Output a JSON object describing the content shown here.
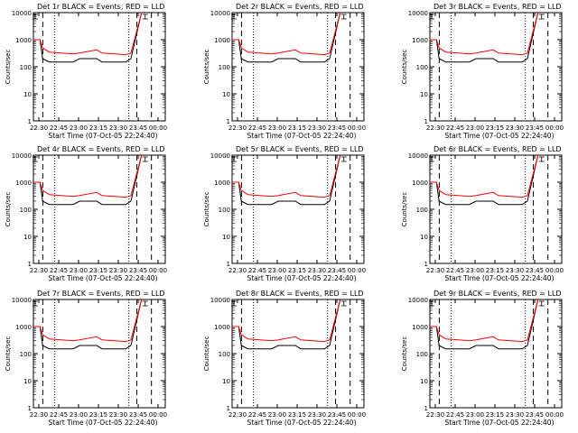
{
  "colors": {
    "background": "#ffffff",
    "axes": "#000000",
    "events": "#000000",
    "lld": "#ff0000"
  },
  "chart_data": [
    {
      "type": "line",
      "title": "Det 1r BLACK = Events, RED = LLD",
      "xlabel": "Start Time (07-Oct-05 22:24:40)",
      "ylabel": "Counts/sec",
      "yscale": "log",
      "ylim": [
        1,
        10000
      ],
      "xlim": [
        0,
        100
      ],
      "x_tick_labels": [
        "22:30",
        "22:45",
        "23:00",
        "23:15",
        "23:30",
        "23:45",
        "00:00"
      ],
      "y_tick_labels": [
        "1",
        "10",
        "100",
        "1000",
        "10000"
      ],
      "vlines_dashed": [
        "22:33",
        "23:44",
        "23:55"
      ],
      "vlines_dotted": [
        "22:42",
        "23:38"
      ],
      "series": [
        {
          "name": "Events",
          "x": [
            0,
            5,
            7,
            12,
            30,
            35,
            48,
            52,
            70,
            74,
            82
          ],
          "y": [
            1000,
            1000,
            200,
            150,
            150,
            200,
            200,
            150,
            150,
            200,
            10000
          ]
        },
        {
          "name": "LLD",
          "x": [
            0,
            5,
            7,
            12,
            30,
            35,
            48,
            52,
            70,
            74,
            82
          ],
          "y": [
            1000,
            1000,
            500,
            350,
            300,
            320,
            420,
            320,
            280,
            320,
            10000
          ]
        }
      ]
    },
    {
      "type": "line",
      "title": "Det 2r BLACK = Events, RED = LLD",
      "xlabel": "Start Time (07-Oct-05 22:24:40)",
      "ylabel": "Counts/sec",
      "yscale": "log",
      "ylim": [
        1,
        10000
      ],
      "xlim": [
        0,
        100
      ],
      "x_tick_labels": [
        "22:30",
        "22:45",
        "23:00",
        "23:15",
        "23:30",
        "23:45",
        "00:00"
      ],
      "y_tick_labels": [
        "1",
        "10",
        "100",
        "1000",
        "10000"
      ],
      "vlines_dashed": [
        "22:33",
        "23:44",
        "23:55"
      ],
      "vlines_dotted": [
        "22:42",
        "23:38"
      ],
      "series": [
        {
          "name": "Events",
          "x": [
            0,
            5,
            7,
            12,
            30,
            35,
            48,
            52,
            70,
            74,
            82
          ],
          "y": [
            1000,
            1000,
            200,
            150,
            150,
            200,
            200,
            150,
            150,
            200,
            10000
          ]
        },
        {
          "name": "LLD",
          "x": [
            0,
            5,
            7,
            12,
            30,
            35,
            48,
            52,
            70,
            74,
            82
          ],
          "y": [
            1000,
            1000,
            500,
            350,
            300,
            320,
            420,
            320,
            280,
            320,
            10000
          ]
        }
      ]
    },
    {
      "type": "line",
      "title": "Det 3r BLACK = Events, RED = LLD",
      "xlabel": "Start Time (07-Oct-05 22:24:40)",
      "ylabel": "Counts/sec",
      "yscale": "log",
      "ylim": [
        1,
        10000
      ],
      "xlim": [
        0,
        100
      ],
      "x_tick_labels": [
        "22:30",
        "22:45",
        "23:00",
        "23:15",
        "23:30",
        "23:45",
        "00:00"
      ],
      "y_tick_labels": [
        "1",
        "10",
        "100",
        "1000",
        "10000"
      ],
      "vlines_dashed": [
        "22:33",
        "23:44",
        "23:55"
      ],
      "vlines_dotted": [
        "22:42",
        "23:38"
      ],
      "series": [
        {
          "name": "Events",
          "x": [
            0,
            5,
            7,
            12,
            30,
            35,
            48,
            52,
            70,
            74,
            82
          ],
          "y": [
            1000,
            1000,
            200,
            150,
            150,
            200,
            200,
            150,
            150,
            200,
            10000
          ]
        },
        {
          "name": "LLD",
          "x": [
            0,
            5,
            7,
            12,
            30,
            35,
            48,
            52,
            70,
            74,
            82
          ],
          "y": [
            1000,
            1000,
            500,
            350,
            300,
            320,
            420,
            320,
            280,
            320,
            10000
          ]
        }
      ]
    },
    {
      "type": "line",
      "title": "Det 4r BLACK = Events, RED = LLD",
      "xlabel": "Start Time (07-Oct-05 22:24:40)",
      "ylabel": "Counts/sec",
      "yscale": "log",
      "ylim": [
        1,
        10000
      ],
      "xlim": [
        0,
        100
      ],
      "x_tick_labels": [
        "22:30",
        "22:45",
        "23:00",
        "23:15",
        "23:30",
        "23:45",
        "00:00"
      ],
      "y_tick_labels": [
        "1",
        "10",
        "100",
        "1000",
        "10000"
      ],
      "vlines_dashed": [
        "22:33",
        "23:44",
        "23:55"
      ],
      "vlines_dotted": [
        "22:42",
        "23:38"
      ],
      "series": [
        {
          "name": "Events",
          "x": [
            0,
            5,
            7,
            12,
            30,
            35,
            48,
            52,
            70,
            74,
            82
          ],
          "y": [
            1000,
            1000,
            200,
            150,
            150,
            200,
            200,
            150,
            150,
            200,
            10000
          ]
        },
        {
          "name": "LLD",
          "x": [
            0,
            5,
            7,
            12,
            30,
            35,
            48,
            52,
            70,
            74,
            82
          ],
          "y": [
            1000,
            1000,
            500,
            350,
            300,
            320,
            420,
            320,
            280,
            320,
            10000
          ]
        }
      ]
    },
    {
      "type": "line",
      "title": "Det 5r BLACK = Events, RED = LLD",
      "xlabel": "Start Time (07-Oct-05 22:24:40)",
      "ylabel": "Counts/sec",
      "yscale": "log",
      "ylim": [
        1,
        10000
      ],
      "xlim": [
        0,
        100
      ],
      "x_tick_labels": [
        "22:30",
        "22:45",
        "23:00",
        "23:15",
        "23:30",
        "23:45",
        "00:00"
      ],
      "y_tick_labels": [
        "1",
        "10",
        "100",
        "1000",
        "10000"
      ],
      "vlines_dashed": [
        "22:33",
        "23:44",
        "23:55"
      ],
      "vlines_dotted": [
        "22:42",
        "23:38"
      ],
      "series": [
        {
          "name": "Events",
          "x": [
            0,
            5,
            7,
            12,
            30,
            35,
            48,
            52,
            70,
            74,
            82
          ],
          "y": [
            1000,
            1000,
            200,
            150,
            150,
            200,
            200,
            150,
            150,
            200,
            10000
          ]
        },
        {
          "name": "LLD",
          "x": [
            0,
            5,
            7,
            12,
            30,
            35,
            48,
            52,
            70,
            74,
            82
          ],
          "y": [
            1000,
            1000,
            500,
            350,
            300,
            320,
            420,
            320,
            280,
            320,
            10000
          ]
        }
      ]
    },
    {
      "type": "line",
      "title": "Det 6r BLACK = Events, RED = LLD",
      "xlabel": "Start Time (07-Oct-05 22:24:40)",
      "ylabel": "Counts/sec",
      "yscale": "log",
      "ylim": [
        1,
        10000
      ],
      "xlim": [
        0,
        100
      ],
      "x_tick_labels": [
        "22:30",
        "22:45",
        "23:00",
        "23:15",
        "23:30",
        "23:45",
        "00:00"
      ],
      "y_tick_labels": [
        "1",
        "10",
        "100",
        "1000",
        "10000"
      ],
      "vlines_dashed": [
        "22:33",
        "23:44",
        "23:55"
      ],
      "vlines_dotted": [
        "22:42",
        "23:38"
      ],
      "series": [
        {
          "name": "Events",
          "x": [
            0,
            5,
            7,
            12,
            30,
            35,
            48,
            52,
            70,
            74,
            82
          ],
          "y": [
            1000,
            1000,
            200,
            150,
            150,
            200,
            200,
            150,
            150,
            200,
            10000
          ]
        },
        {
          "name": "LLD",
          "x": [
            0,
            5,
            7,
            12,
            30,
            35,
            48,
            52,
            70,
            74,
            82
          ],
          "y": [
            1000,
            1000,
            500,
            350,
            300,
            320,
            420,
            320,
            280,
            320,
            10000
          ]
        }
      ]
    },
    {
      "type": "line",
      "title": "Det 7r BLACK = Events, RED = LLD",
      "xlabel": "Start Time (07-Oct-05 22:24:40)",
      "ylabel": "Counts/sec",
      "yscale": "log",
      "ylim": [
        1,
        10000
      ],
      "xlim": [
        0,
        100
      ],
      "x_tick_labels": [
        "22:30",
        "22:45",
        "23:00",
        "23:15",
        "23:30",
        "23:45",
        "00:00"
      ],
      "y_tick_labels": [
        "1",
        "10",
        "100",
        "1000",
        "10000"
      ],
      "vlines_dashed": [
        "22:33",
        "23:44",
        "23:55"
      ],
      "vlines_dotted": [
        "22:42",
        "23:38"
      ],
      "series": [
        {
          "name": "Events",
          "x": [
            0,
            5,
            7,
            12,
            30,
            35,
            48,
            52,
            70,
            74,
            82
          ],
          "y": [
            1000,
            1000,
            200,
            150,
            150,
            200,
            200,
            150,
            150,
            200,
            10000
          ]
        },
        {
          "name": "LLD",
          "x": [
            0,
            5,
            7,
            12,
            30,
            35,
            48,
            52,
            70,
            74,
            82
          ],
          "y": [
            1000,
            1000,
            500,
            350,
            300,
            320,
            420,
            320,
            280,
            320,
            10000
          ]
        }
      ]
    },
    {
      "type": "line",
      "title": "Det 8r BLACK = Events, RED = LLD",
      "xlabel": "Start Time (07-Oct-05 22:24:40)",
      "ylabel": "Counts/sec",
      "yscale": "log",
      "ylim": [
        1,
        10000
      ],
      "xlim": [
        0,
        100
      ],
      "x_tick_labels": [
        "22:30",
        "22:45",
        "23:00",
        "23:15",
        "23:30",
        "23:45",
        "00:00"
      ],
      "y_tick_labels": [
        "1",
        "10",
        "100",
        "1000",
        "10000"
      ],
      "vlines_dashed": [
        "22:33",
        "23:44",
        "23:55"
      ],
      "vlines_dotted": [
        "22:42",
        "23:38"
      ],
      "series": [
        {
          "name": "Events",
          "x": [
            0,
            5,
            7,
            12,
            30,
            35,
            48,
            52,
            70,
            74,
            82
          ],
          "y": [
            1000,
            1000,
            200,
            150,
            150,
            200,
            200,
            150,
            150,
            200,
            10000
          ]
        },
        {
          "name": "LLD",
          "x": [
            0,
            5,
            7,
            12,
            30,
            35,
            48,
            52,
            70,
            74,
            82
          ],
          "y": [
            1000,
            1000,
            500,
            350,
            300,
            320,
            420,
            320,
            280,
            320,
            10000
          ]
        }
      ]
    },
    {
      "type": "line",
      "title": "Det 9r BLACK = Events, RED = LLD",
      "xlabel": "Start Time (07-Oct-05 22:24:40)",
      "ylabel": "Counts/sec",
      "yscale": "log",
      "ylim": [
        1,
        10000
      ],
      "xlim": [
        0,
        100
      ],
      "x_tick_labels": [
        "22:30",
        "22:45",
        "23:00",
        "23:15",
        "23:30",
        "23:45",
        "00:00"
      ],
      "y_tick_labels": [
        "1",
        "10",
        "100",
        "1000",
        "10000"
      ],
      "vlines_dashed": [
        "22:33",
        "23:44",
        "23:55"
      ],
      "vlines_dotted": [
        "22:42",
        "23:38"
      ],
      "series": [
        {
          "name": "Events",
          "x": [
            0,
            5,
            7,
            12,
            30,
            35,
            48,
            52,
            70,
            74,
            82
          ],
          "y": [
            1000,
            1000,
            200,
            150,
            150,
            200,
            200,
            150,
            150,
            200,
            10000
          ]
        },
        {
          "name": "LLD",
          "x": [
            0,
            5,
            7,
            12,
            30,
            35,
            48,
            52,
            70,
            74,
            82
          ],
          "y": [
            1000,
            1000,
            500,
            350,
            300,
            320,
            420,
            320,
            280,
            320,
            10000
          ]
        }
      ]
    }
  ]
}
